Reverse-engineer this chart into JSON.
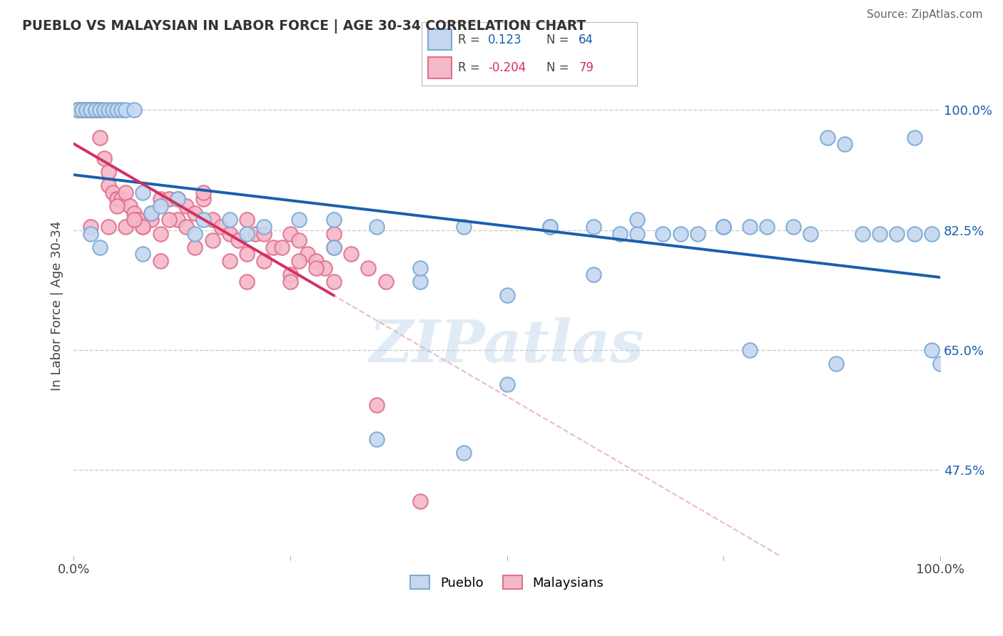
{
  "title": "PUEBLO VS MALAYSIAN IN LABOR FORCE | AGE 30-34 CORRELATION CHART",
  "source": "Source: ZipAtlas.com",
  "ylabel": "In Labor Force | Age 30-34",
  "xlim": [
    0.0,
    1.0
  ],
  "ylim": [
    0.35,
    1.08
  ],
  "yticks": [
    0.475,
    0.65,
    0.825,
    1.0
  ],
  "ytick_labels": [
    "47.5%",
    "65.0%",
    "82.5%",
    "100.0%"
  ],
  "xticks": [
    0.0,
    0.25,
    0.5,
    0.75,
    1.0
  ],
  "xtick_labels": [
    "0.0%",
    "",
    "",
    "",
    "100.0%"
  ],
  "pueblo_color": "#c5d8f0",
  "malaysian_color": "#f5b8c8",
  "pueblo_edge_color": "#7aaad4",
  "malaysian_edge_color": "#e07090",
  "pueblo_trend_color": "#1a5fad",
  "malaysian_trend_color": "#d43060",
  "diag_color": "#e8a8b8",
  "watermark_text": "ZIPatlas",
  "legend_pueblo_label": "Pueblo",
  "legend_malaysian_label": "Malaysians",
  "background_color": "#ffffff",
  "grid_color": "#cccccc",
  "pueblo_x": [
    0.005,
    0.01,
    0.015,
    0.02,
    0.025,
    0.03,
    0.035,
    0.04,
    0.045,
    0.05,
    0.055,
    0.06,
    0.07,
    0.08,
    0.09,
    0.1,
    0.12,
    0.15,
    0.18,
    0.22,
    0.26,
    0.3,
    0.35,
    0.4,
    0.45,
    0.5,
    0.55,
    0.6,
    0.63,
    0.65,
    0.68,
    0.7,
    0.72,
    0.75,
    0.78,
    0.8,
    0.83,
    0.85,
    0.87,
    0.89,
    0.91,
    0.93,
    0.95,
    0.97,
    0.99,
    1.0,
    0.97,
    0.99,
    0.02,
    0.03,
    0.08,
    0.14,
    0.2,
    0.3,
    0.4,
    0.5,
    0.6,
    0.78,
    0.88,
    0.55,
    0.65,
    0.75,
    0.35,
    0.45
  ],
  "pueblo_y": [
    1.0,
    1.0,
    1.0,
    1.0,
    1.0,
    1.0,
    1.0,
    1.0,
    1.0,
    1.0,
    1.0,
    1.0,
    1.0,
    0.88,
    0.85,
    0.86,
    0.87,
    0.84,
    0.84,
    0.83,
    0.84,
    0.84,
    0.83,
    0.75,
    0.83,
    0.6,
    0.83,
    0.83,
    0.82,
    0.82,
    0.82,
    0.82,
    0.82,
    0.83,
    0.83,
    0.83,
    0.83,
    0.82,
    0.96,
    0.95,
    0.82,
    0.82,
    0.82,
    0.82,
    0.65,
    0.63,
    0.96,
    0.82,
    0.82,
    0.8,
    0.79,
    0.82,
    0.82,
    0.8,
    0.77,
    0.73,
    0.76,
    0.65,
    0.63,
    0.83,
    0.84,
    0.83,
    0.52,
    0.5
  ],
  "malaysian_x": [
    0.005,
    0.005,
    0.01,
    0.01,
    0.01,
    0.015,
    0.015,
    0.02,
    0.02,
    0.02,
    0.025,
    0.025,
    0.03,
    0.03,
    0.03,
    0.035,
    0.04,
    0.04,
    0.045,
    0.05,
    0.05,
    0.055,
    0.06,
    0.065,
    0.07,
    0.075,
    0.08,
    0.09,
    0.1,
    0.11,
    0.12,
    0.13,
    0.14,
    0.15,
    0.16,
    0.17,
    0.18,
    0.19,
    0.2,
    0.21,
    0.22,
    0.23,
    0.24,
    0.25,
    0.26,
    0.27,
    0.28,
    0.29,
    0.3,
    0.32,
    0.34,
    0.36,
    0.1,
    0.15,
    0.2,
    0.25,
    0.3,
    0.2,
    0.14,
    0.18,
    0.22,
    0.1,
    0.08,
    0.06,
    0.04,
    0.02,
    0.12,
    0.16,
    0.26,
    0.28,
    0.05,
    0.07,
    0.09,
    0.11,
    0.13,
    0.25,
    0.3,
    0.35,
    0.4
  ],
  "malaysian_y": [
    1.0,
    1.0,
    1.0,
    1.0,
    1.0,
    1.0,
    1.0,
    1.0,
    1.0,
    1.0,
    1.0,
    1.0,
    1.0,
    1.0,
    0.96,
    0.93,
    0.91,
    0.89,
    0.88,
    0.87,
    0.87,
    0.87,
    0.88,
    0.86,
    0.85,
    0.84,
    0.83,
    0.84,
    0.87,
    0.87,
    0.87,
    0.86,
    0.85,
    0.87,
    0.84,
    0.83,
    0.82,
    0.81,
    0.84,
    0.82,
    0.82,
    0.8,
    0.8,
    0.82,
    0.81,
    0.79,
    0.78,
    0.77,
    0.82,
    0.79,
    0.77,
    0.75,
    0.78,
    0.88,
    0.79,
    0.76,
    0.8,
    0.75,
    0.8,
    0.78,
    0.78,
    0.82,
    0.83,
    0.83,
    0.83,
    0.83,
    0.84,
    0.81,
    0.78,
    0.77,
    0.86,
    0.84,
    0.85,
    0.84,
    0.83,
    0.75,
    0.75,
    0.57,
    0.43
  ]
}
